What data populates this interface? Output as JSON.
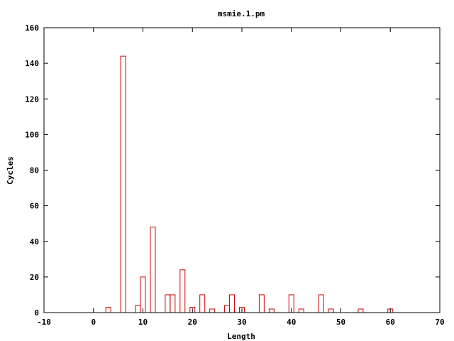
{
  "chart_data": {
    "type": "bar",
    "title": "msmie.1.pm",
    "xlabel": "Length",
    "ylabel": "Cycles",
    "xlim": [
      -10,
      70
    ],
    "ylim": [
      0,
      160
    ],
    "xticks": [
      -10,
      0,
      10,
      20,
      30,
      40,
      50,
      60,
      70
    ],
    "yticks": [
      0,
      20,
      40,
      60,
      80,
      100,
      120,
      140,
      160
    ],
    "grid": false,
    "bar_color": "#cc0000",
    "x": [
      3,
      6,
      9,
      10,
      12,
      15,
      16,
      18,
      20,
      22,
      24,
      27,
      28,
      30,
      34,
      36,
      40,
      42,
      46,
      48,
      54,
      60
    ],
    "values": [
      3,
      144,
      4,
      20,
      48,
      10,
      10,
      24,
      3,
      10,
      2,
      4,
      10,
      3,
      10,
      2,
      10,
      2,
      10,
      2,
      2,
      2
    ]
  }
}
